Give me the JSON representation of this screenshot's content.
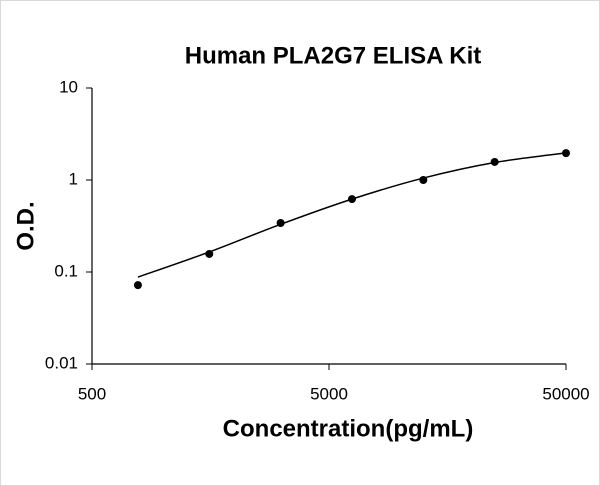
{
  "chart_data": {
    "type": "scatter",
    "title": "Human PLA2G7 ELISA Kit",
    "x_label": "Concentration(pg/mL)",
    "y_label": "O.D.",
    "x_scale": "log",
    "y_scale": "log",
    "xlim": [
      500,
      50000
    ],
    "xticks": [
      500,
      5000,
      50000
    ],
    "ylim": [
      0.01,
      10
    ],
    "yticks": [
      0.01,
      0.1,
      1,
      10
    ],
    "series": [
      {
        "kind": "points",
        "color": "#000000",
        "x": [
          781.25,
          1562.5,
          3125,
          6250,
          12500,
          25000,
          50000
        ],
        "values": [
          0.072,
          0.157,
          0.341,
          0.62,
          1.0,
          1.57,
          1.96
        ]
      },
      {
        "kind": "line",
        "color": "#000000",
        "x": [
          781.25,
          1562.5,
          3125,
          6250,
          12500,
          25000,
          50000
        ],
        "values": [
          0.088,
          0.165,
          0.33,
          0.62,
          1.05,
          1.55,
          1.97
        ]
      }
    ]
  }
}
